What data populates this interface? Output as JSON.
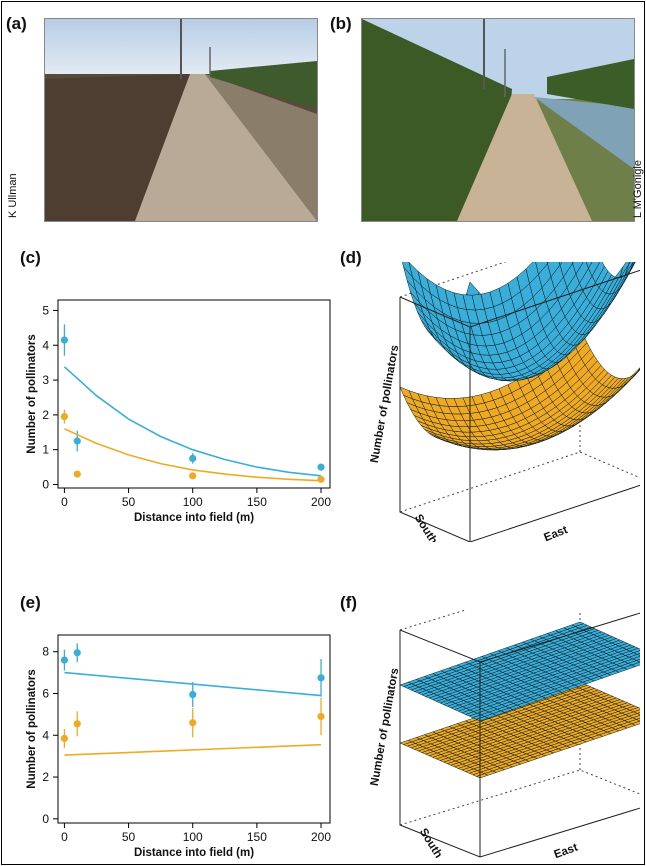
{
  "panels": {
    "a": "(a)",
    "b": "(b)",
    "c": "(c)",
    "d": "(d)",
    "e": "(e)",
    "f": "(f)"
  },
  "photo_credits": {
    "a": "K Ullman",
    "b": "L M'Gonigle"
  },
  "colors": {
    "wild": "#3aaed8",
    "honey": "#f0aa22",
    "sky": "#c9dcef",
    "dirt": "#a8927a",
    "trees": "#3d5a2a"
  },
  "chart_data": [
    {
      "panel": "c",
      "type": "scatter",
      "xlabel": "Distance into field (m)",
      "ylabel": "Number of pollinators",
      "xlim": [
        -5,
        207
      ],
      "ylim": [
        -0.1,
        5.3
      ],
      "xticks": [
        "0",
        "50",
        "100",
        "150",
        "200"
      ],
      "yticks": [
        "0",
        "1",
        "2",
        "3",
        "4",
        "5"
      ],
      "series": [
        {
          "color": "#3aaed8",
          "points": [
            {
              "x": 0,
              "y": 4.15,
              "err": 0.45
            },
            {
              "x": 10,
              "y": 1.25,
              "err": 0.3
            },
            {
              "x": 100,
              "y": 0.75,
              "err": 0.15
            },
            {
              "x": 200,
              "y": 0.5,
              "err": 0.1
            }
          ],
          "fit": [
            {
              "x": 0,
              "y": 3.38
            },
            {
              "x": 25,
              "y": 2.55
            },
            {
              "x": 50,
              "y": 1.88
            },
            {
              "x": 75,
              "y": 1.38
            },
            {
              "x": 100,
              "y": 1.0
            },
            {
              "x": 125,
              "y": 0.72
            },
            {
              "x": 150,
              "y": 0.5
            },
            {
              "x": 175,
              "y": 0.35
            },
            {
              "x": 200,
              "y": 0.25
            }
          ]
        },
        {
          "color": "#f0aa22",
          "points": [
            {
              "x": 0,
              "y": 1.95,
              "err": 0.2
            },
            {
              "x": 10,
              "y": 0.3,
              "err": 0.08
            },
            {
              "x": 100,
              "y": 0.25,
              "err": 0.05
            },
            {
              "x": 200,
              "y": 0.15,
              "err": 0.05
            }
          ],
          "fit": [
            {
              "x": 0,
              "y": 1.6
            },
            {
              "x": 25,
              "y": 1.18
            },
            {
              "x": 50,
              "y": 0.85
            },
            {
              "x": 75,
              "y": 0.6
            },
            {
              "x": 100,
              "y": 0.42
            },
            {
              "x": 125,
              "y": 0.3
            },
            {
              "x": 150,
              "y": 0.21
            },
            {
              "x": 175,
              "y": 0.15
            },
            {
              "x": 200,
              "y": 0.11
            }
          ]
        }
      ]
    },
    {
      "panel": "d",
      "type": "surface",
      "shape": "bowl",
      "axis_labels": {
        "vertical": "Number of pollinators",
        "depth": "South",
        "width": "East"
      },
      "series": [
        {
          "color": "#3aaed8"
        },
        {
          "color": "#f0aa22"
        }
      ]
    },
    {
      "panel": "e",
      "type": "scatter",
      "xlabel": "Distance into field (m)",
      "ylabel": "Number of pollinators",
      "xlim": [
        -5,
        207
      ],
      "ylim": [
        -0.2,
        8.8
      ],
      "xticks": [
        "0",
        "50",
        "100",
        "150",
        "200"
      ],
      "yticks": [
        "0",
        "2",
        "4",
        "6",
        "8"
      ],
      "series": [
        {
          "color": "#3aaed8",
          "points": [
            {
              "x": 0,
              "y": 7.6,
              "err": 0.5
            },
            {
              "x": 10,
              "y": 7.95,
              "err": 0.45
            },
            {
              "x": 100,
              "y": 5.95,
              "err": 0.6
            },
            {
              "x": 200,
              "y": 6.75,
              "err": 0.9
            }
          ],
          "fit": [
            {
              "x": 0,
              "y": 7.0
            },
            {
              "x": 200,
              "y": 5.9
            }
          ]
        },
        {
          "color": "#f0aa22",
          "points": [
            {
              "x": 0,
              "y": 3.85,
              "err": 0.45
            },
            {
              "x": 10,
              "y": 4.55,
              "err": 0.6
            },
            {
              "x": 100,
              "y": 4.6,
              "err": 0.7
            },
            {
              "x": 200,
              "y": 4.9,
              "err": 0.9
            }
          ],
          "fit": [
            {
              "x": 0,
              "y": 3.05
            },
            {
              "x": 200,
              "y": 3.55
            }
          ]
        }
      ]
    },
    {
      "panel": "f",
      "type": "surface",
      "shape": "plane",
      "axis_labels": {
        "vertical": "Number of pollinators",
        "depth": "South",
        "width": "East"
      },
      "series": [
        {
          "color": "#3aaed8"
        },
        {
          "color": "#f0aa22"
        }
      ]
    }
  ]
}
